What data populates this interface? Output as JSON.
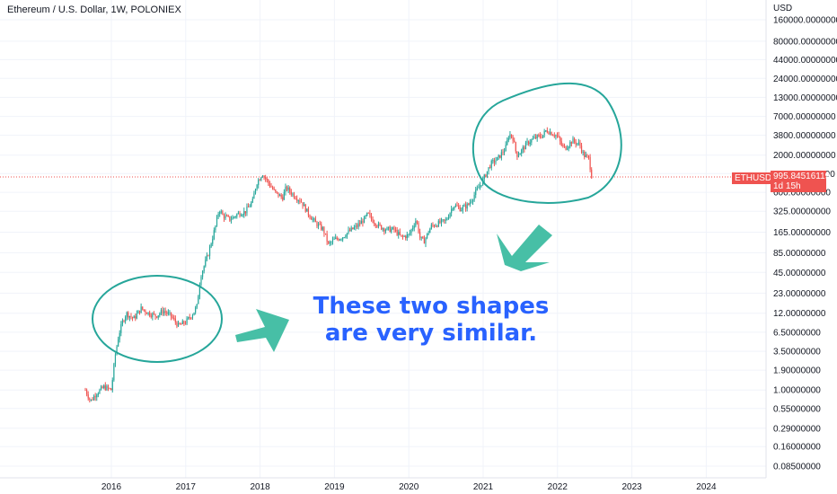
{
  "title": "Ethereum / U.S. Dollar, 1W, POLONIEX",
  "annotation": {
    "line1": "These two shapes",
    "line2": "are very similar."
  },
  "price_tag": {
    "symbol": "ETHUSD",
    "price": "995.84516119",
    "countdown": "1d 15h"
  },
  "colors": {
    "up": "#26a69a",
    "down": "#ef5350",
    "annotation_text": "#2962ff",
    "annotation_shapes": "#26a69a",
    "price_line": "#ef5350"
  },
  "chart_data": {
    "type": "candlestick",
    "yscale": "log",
    "ylabel": "USD",
    "x_ticks": [
      "2016",
      "2017",
      "2018",
      "2019",
      "2020",
      "2021",
      "2022",
      "2023",
      "2024"
    ],
    "y_ticks": [
      "160000.00000000",
      "80000.00000000",
      "44000.00000000",
      "24000.00000000",
      "13000.00000000",
      "7000.00000000",
      "3800.00000000",
      "2000.00000000",
      "1100.00000000",
      "600.00000000",
      "325.00000000",
      "165.00000000",
      "85.00000000",
      "45.00000000",
      "23.00000000",
      "12.00000000",
      "6.50000000",
      "3.50000000",
      "1.90000000",
      "1.00000000",
      "0.55000000",
      "0.29000000",
      "0.16000000",
      "0.08500000"
    ],
    "y_tick_values": [
      160000,
      80000,
      44000,
      24000,
      13000,
      7000,
      3800,
      2000,
      1100,
      600,
      325,
      165,
      85,
      45,
      23,
      12,
      6.5,
      3.5,
      1.9,
      1.0,
      0.55,
      0.29,
      0.16,
      0.085
    ],
    "path_points": [
      [
        2015.65,
        1.0
      ],
      [
        2015.72,
        0.7
      ],
      [
        2015.8,
        0.9
      ],
      [
        2015.9,
        1.1
      ],
      [
        2016.0,
        1.0
      ],
      [
        2016.05,
        3.0
      ],
      [
        2016.1,
        6.0
      ],
      [
        2016.15,
        9.0
      ],
      [
        2016.2,
        12.0
      ],
      [
        2016.3,
        10.0
      ],
      [
        2016.4,
        14.0
      ],
      [
        2016.5,
        12.0
      ],
      [
        2016.6,
        11.0
      ],
      [
        2016.7,
        13.0
      ],
      [
        2016.8,
        11.0
      ],
      [
        2016.9,
        8.0
      ],
      [
        2017.0,
        9.0
      ],
      [
        2017.1,
        12.0
      ],
      [
        2017.15,
        15.0
      ],
      [
        2017.2,
        40.0
      ],
      [
        2017.3,
        80.0
      ],
      [
        2017.4,
        200.0
      ],
      [
        2017.45,
        350.0
      ],
      [
        2017.5,
        280.0
      ],
      [
        2017.6,
        250.0
      ],
      [
        2017.7,
        300.0
      ],
      [
        2017.8,
        320.0
      ],
      [
        2017.9,
        450.0
      ],
      [
        2017.95,
        800.0
      ],
      [
        2018.03,
        1100.0
      ],
      [
        2018.1,
        850.0
      ],
      [
        2018.2,
        600.0
      ],
      [
        2018.3,
        500.0
      ],
      [
        2018.35,
        700.0
      ],
      [
        2018.45,
        550.0
      ],
      [
        2018.55,
        450.0
      ],
      [
        2018.65,
        300.0
      ],
      [
        2018.75,
        220.0
      ],
      [
        2018.85,
        180.0
      ],
      [
        2018.92,
        110.0
      ],
      [
        2019.0,
        130.0
      ],
      [
        2019.1,
        140.0
      ],
      [
        2019.2,
        170.0
      ],
      [
        2019.3,
        200.0
      ],
      [
        2019.4,
        250.0
      ],
      [
        2019.45,
        300.0
      ],
      [
        2019.5,
        250.0
      ],
      [
        2019.6,
        200.0
      ],
      [
        2019.7,
        180.0
      ],
      [
        2019.8,
        180.0
      ],
      [
        2019.9,
        140.0
      ],
      [
        2020.0,
        150.0
      ],
      [
        2020.1,
        250.0
      ],
      [
        2020.15,
        140.0
      ],
      [
        2020.2,
        120.0
      ],
      [
        2020.3,
        200.0
      ],
      [
        2020.4,
        220.0
      ],
      [
        2020.5,
        240.0
      ],
      [
        2020.6,
        400.0
      ],
      [
        2020.7,
        350.0
      ],
      [
        2020.8,
        400.0
      ],
      [
        2020.9,
        600.0
      ],
      [
        2021.0,
        900.0
      ],
      [
        2021.1,
        1500.0
      ],
      [
        2021.2,
        1800.0
      ],
      [
        2021.3,
        2500.0
      ],
      [
        2021.35,
        4000.0
      ],
      [
        2021.4,
        3500.0
      ],
      [
        2021.45,
        2000.0
      ],
      [
        2021.5,
        2200.0
      ],
      [
        2021.6,
        3000.0
      ],
      [
        2021.7,
        3500.0
      ],
      [
        2021.8,
        3800.0
      ],
      [
        2021.85,
        4500.0
      ],
      [
        2021.9,
        4200.0
      ],
      [
        2022.0,
        3700.0
      ],
      [
        2022.05,
        2800.0
      ],
      [
        2022.1,
        2500.0
      ],
      [
        2022.2,
        3200.0
      ],
      [
        2022.25,
        3000.0
      ],
      [
        2022.3,
        2800.0
      ],
      [
        2022.35,
        2000.0
      ],
      [
        2022.42,
        1800.0
      ],
      [
        2022.46,
        995.0
      ]
    ]
  }
}
